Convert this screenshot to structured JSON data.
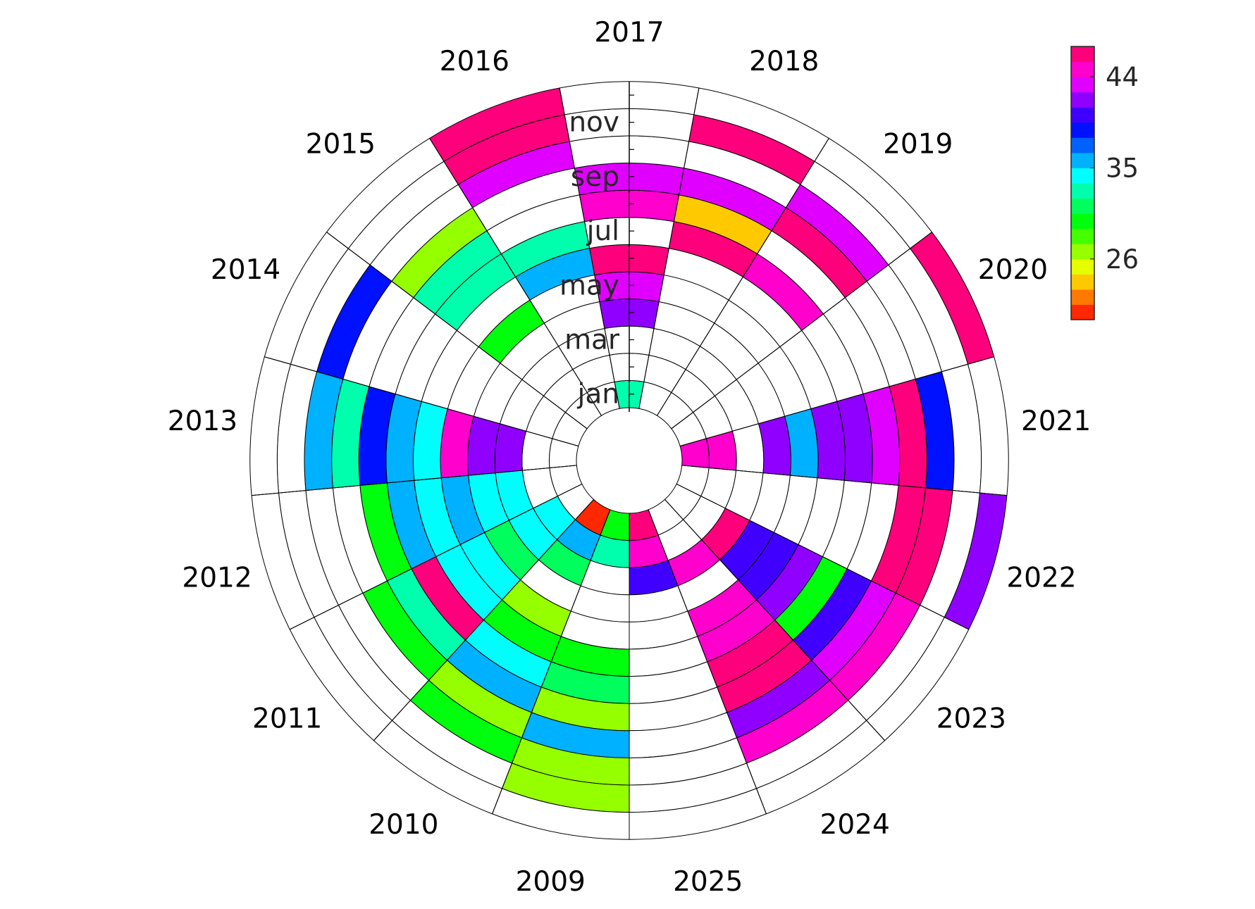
{
  "chart_data": {
    "type": "heatmap",
    "layout": "polar-calendar",
    "title": "",
    "years": [
      "2009",
      "2010",
      "2011",
      "2012",
      "2013",
      "2014",
      "2015",
      "2016",
      "2017",
      "2018",
      "2019",
      "2020",
      "2021",
      "2022",
      "2023",
      "2024",
      "2025"
    ],
    "months": [
      "jan",
      "feb",
      "mar",
      "apr",
      "may",
      "jun",
      "jul",
      "aug",
      "sep",
      "oct",
      "nov",
      "dec"
    ],
    "month_tick_labels": [
      "jan",
      "mar",
      "may",
      "jul",
      "sep",
      "nov"
    ],
    "colorbar": {
      "range": [
        20,
        47
      ],
      "ticks": [
        26,
        35,
        44
      ],
      "tick_labels": [
        "26",
        "35",
        "44"
      ],
      "colormap": "hsv",
      "levels": 18
    },
    "values": {
      "2009": [
        30,
        33,
        null,
        null,
        null,
        30,
        31,
        26,
        35,
        26,
        26,
        null
      ],
      "2010": [
        21,
        35,
        31,
        null,
        26,
        29,
        34,
        35,
        26,
        29,
        null,
        null
      ],
      "2011": [
        null,
        34,
        34,
        31,
        34,
        34,
        46,
        32,
        30,
        null,
        null,
        null
      ],
      "2012": [
        null,
        null,
        34,
        34,
        35,
        34,
        36,
        29,
        null,
        null,
        null,
        null
      ],
      "2013": [
        null,
        null,
        41,
        42,
        44,
        34,
        36,
        38,
        32,
        35,
        null,
        null
      ],
      "2014": [
        null,
        null,
        null,
        null,
        null,
        null,
        null,
        null,
        null,
        39,
        null,
        null
      ],
      "2015": [
        null,
        null,
        null,
        null,
        30,
        null,
        33,
        32,
        27,
        null,
        null,
        null
      ],
      "2016": [
        null,
        null,
        null,
        null,
        null,
        35,
        32,
        null,
        null,
        43,
        46,
        46
      ],
      "2017": [
        33,
        null,
        null,
        42,
        43,
        47,
        null,
        44,
        43,
        null,
        null,
        null
      ],
      "2018": [
        null,
        null,
        null,
        null,
        null,
        null,
        47,
        23,
        43,
        null,
        46,
        null
      ],
      "2019": [
        null,
        null,
        null,
        null,
        null,
        null,
        44,
        null,
        46,
        43,
        null,
        null
      ],
      "2020": [
        null,
        null,
        null,
        null,
        null,
        null,
        null,
        null,
        null,
        null,
        null,
        47
      ],
      "2021": [
        44,
        44,
        null,
        42,
        36,
        41,
        42,
        43,
        46,
        39,
        null,
        null
      ],
      "2022": [
        null,
        null,
        null,
        null,
        null,
        null,
        null,
        null,
        46,
        47,
        null,
        41
      ],
      "2023": [
        null,
        null,
        47,
        40,
        40,
        42,
        30,
        40,
        43,
        45,
        null,
        null
      ],
      "2024": [
        null,
        null,
        44,
        null,
        44,
        44,
        47,
        46,
        41,
        45,
        null,
        null
      ],
      "2025": [
        46,
        45,
        40,
        null,
        null,
        null,
        null,
        null,
        null,
        null,
        null,
        null
      ]
    }
  }
}
